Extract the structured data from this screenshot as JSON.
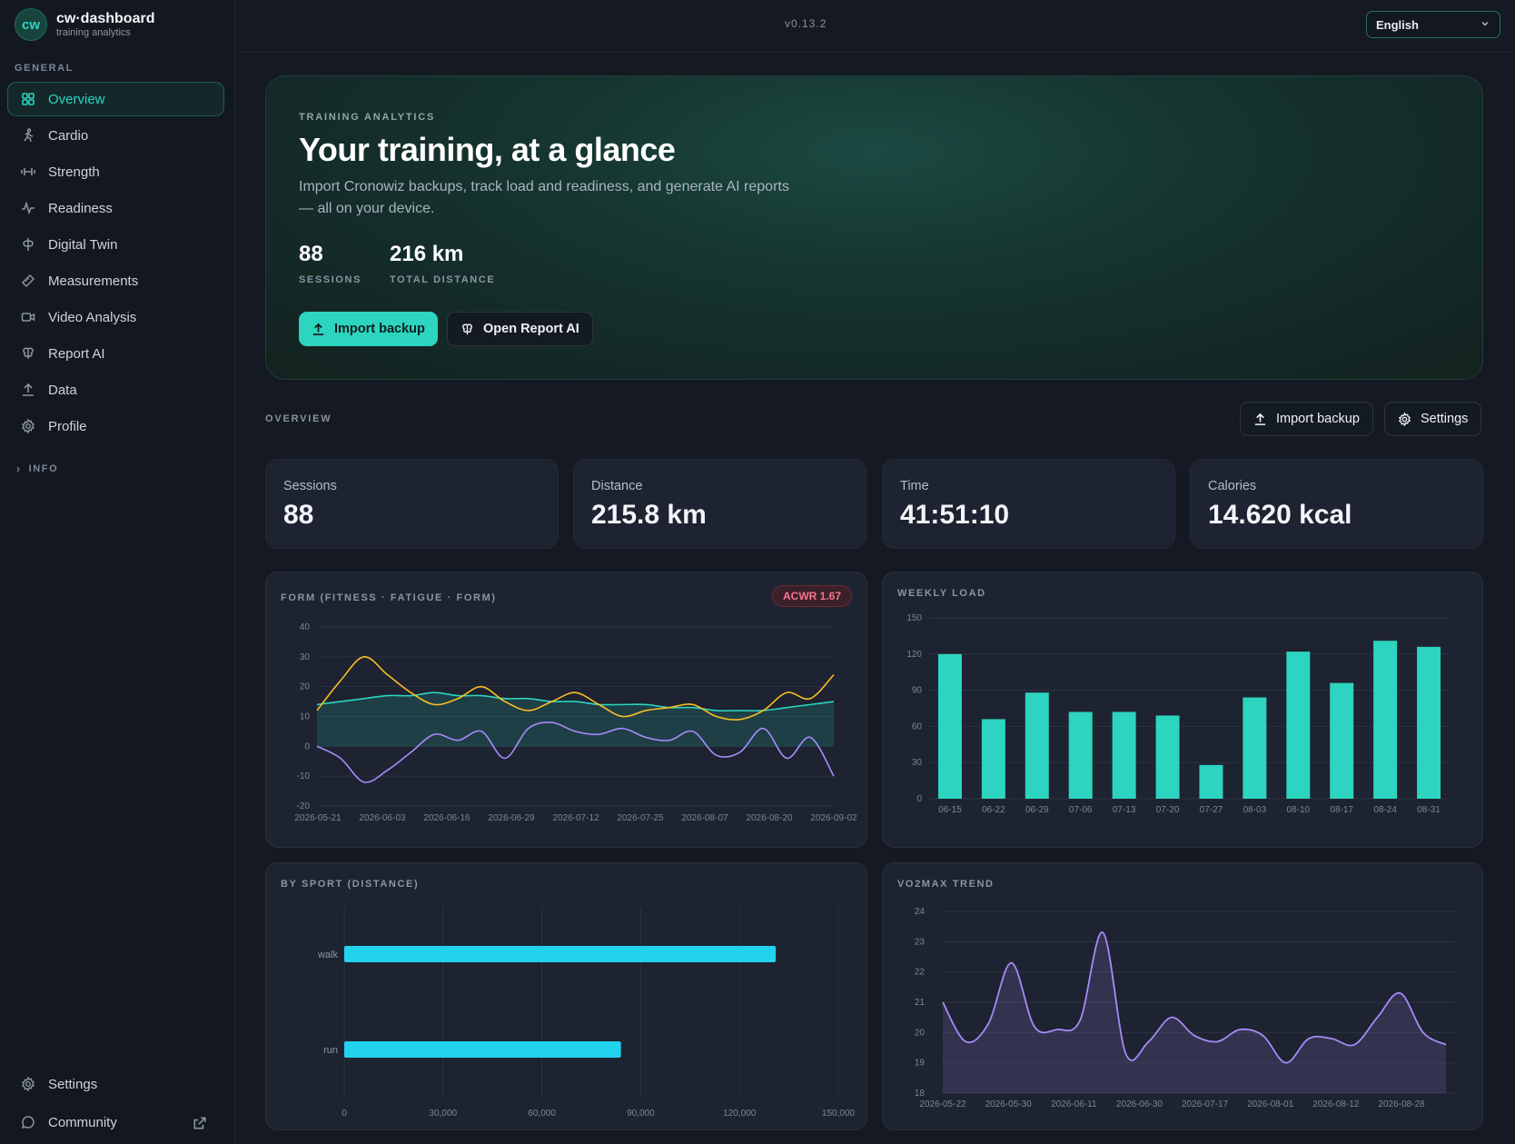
{
  "brand": {
    "logo": "cw",
    "name": "cw·dashboard",
    "subtitle": "training analytics"
  },
  "sidebar": {
    "section_general": "GENERAL",
    "items": [
      {
        "label": "Overview",
        "icon": "grid-icon",
        "active": true
      },
      {
        "label": "Cardio",
        "icon": "runner-icon"
      },
      {
        "label": "Strength",
        "icon": "dumbbell-icon"
      },
      {
        "label": "Readiness",
        "icon": "pulse-icon"
      },
      {
        "label": "Digital Twin",
        "icon": "twin-icon"
      },
      {
        "label": "Measurements",
        "icon": "ruler-icon"
      },
      {
        "label": "Video Analysis",
        "icon": "video-icon"
      },
      {
        "label": "Report AI",
        "icon": "brain-icon"
      },
      {
        "label": "Data",
        "icon": "upload-icon"
      },
      {
        "label": "Profile",
        "icon": "gear-icon"
      }
    ],
    "info_label": "INFO",
    "footer": [
      {
        "label": "Settings",
        "icon": "gear-icon"
      },
      {
        "label": "Community",
        "icon": "chat-icon",
        "external": true
      }
    ]
  },
  "topbar": {
    "version": "v0.13.2",
    "language": "English"
  },
  "hero": {
    "kicker": "TRAINING ANALYTICS",
    "title": "Your training, at a glance",
    "description": "Import Cronowiz backups, track load and readiness, and generate AI reports — all on your device.",
    "stats": [
      {
        "value": "88",
        "label": "SESSIONS"
      },
      {
        "value": "216 km",
        "label": "TOTAL DISTANCE"
      }
    ],
    "import_button": "Import backup",
    "report_button": "Open Report AI"
  },
  "overview": {
    "label": "OVERVIEW",
    "import_button": "Import backup",
    "settings_button": "Settings",
    "cards": [
      {
        "label": "Sessions",
        "value": "88"
      },
      {
        "label": "Distance",
        "value": "215.8 km"
      },
      {
        "label": "Time",
        "value": "41:51:10"
      },
      {
        "label": "Calories",
        "value": "14.620 kcal"
      }
    ]
  },
  "colors": {
    "accent": "#2dd4bf",
    "fatigue": "#fbbf24",
    "form": "#a78bfa",
    "sport_bar": "#22d3ee",
    "badge": "#f6738d"
  },
  "chart_data": [
    {
      "type": "line",
      "title": "FORM (FITNESS · FATIGUE · FORM)",
      "badge": "ACWR 1.67",
      "ylim": [
        -20,
        40
      ],
      "yticks": [
        -20,
        -10,
        0,
        10,
        20,
        30,
        40
      ],
      "xticks": [
        "2026-05-21",
        "2026-06-03",
        "2026-06-16",
        "2026-06-29",
        "2026-07-12",
        "2026-07-25",
        "2026-08-07",
        "2026-08-20",
        "2026-09-02"
      ],
      "grid": true,
      "series": [
        {
          "values": [
            14,
            15,
            16,
            17,
            17,
            18,
            17,
            17,
            16,
            16,
            15,
            15,
            14,
            14,
            14,
            13,
            13,
            12,
            12,
            12,
            13,
            14,
            15
          ]
        },
        {
          "values": [
            12,
            22,
            30,
            24,
            18,
            14,
            16,
            20,
            15,
            12,
            15,
            18,
            14,
            10,
            12,
            13,
            14,
            10,
            9,
            12,
            18,
            16,
            24
          ]
        },
        {
          "values": [
            0,
            -4,
            -12,
            -8,
            -2,
            4,
            2,
            5,
            -4,
            6,
            8,
            5,
            4,
            6,
            3,
            2,
            5,
            -3,
            -2,
            6,
            -4,
            3,
            -10
          ]
        }
      ]
    },
    {
      "type": "bar",
      "title": "WEEKLY LOAD",
      "categories": [
        "06-15",
        "06-22",
        "06-29",
        "07-06",
        "07-13",
        "07-20",
        "07-27",
        "08-03",
        "08-10",
        "08-17",
        "08-24",
        "08-31"
      ],
      "values": [
        120,
        66,
        88,
        72,
        72,
        69,
        28,
        84,
        122,
        96,
        131,
        126
      ],
      "ylim": [
        0,
        150
      ],
      "yticks": [
        0,
        30,
        60,
        90,
        120,
        150
      ],
      "grid": true
    },
    {
      "type": "bar",
      "title": "BY SPORT (DISTANCE)",
      "orientation": "horizontal",
      "categories": [
        "walk",
        "run"
      ],
      "values": [
        131000,
        84000
      ],
      "xlim": [
        0,
        150000
      ],
      "xticks": [
        "0",
        "30,000",
        "60,000",
        "90,000",
        "120,000",
        "150,000"
      ],
      "grid": true
    },
    {
      "type": "area",
      "title": "VO2MAX TREND",
      "ylim": [
        18,
        24
      ],
      "yticks": [
        18,
        19,
        20,
        21,
        22,
        23,
        24
      ],
      "xticks": [
        "2026-05-22",
        "2026-05-30",
        "2026-06-11",
        "2026-06-30",
        "2026-07-17",
        "2026-08-01",
        "2026-08-12",
        "2026-08-28"
      ],
      "values": [
        21.0,
        19.7,
        20.3,
        22.3,
        20.2,
        20.1,
        20.4,
        23.3,
        19.3,
        19.7,
        20.5,
        19.9,
        19.7,
        20.1,
        19.9,
        19.0,
        19.8,
        19.8,
        19.6,
        20.5,
        21.3,
        20.0,
        19.6
      ],
      "grid": true
    }
  ]
}
